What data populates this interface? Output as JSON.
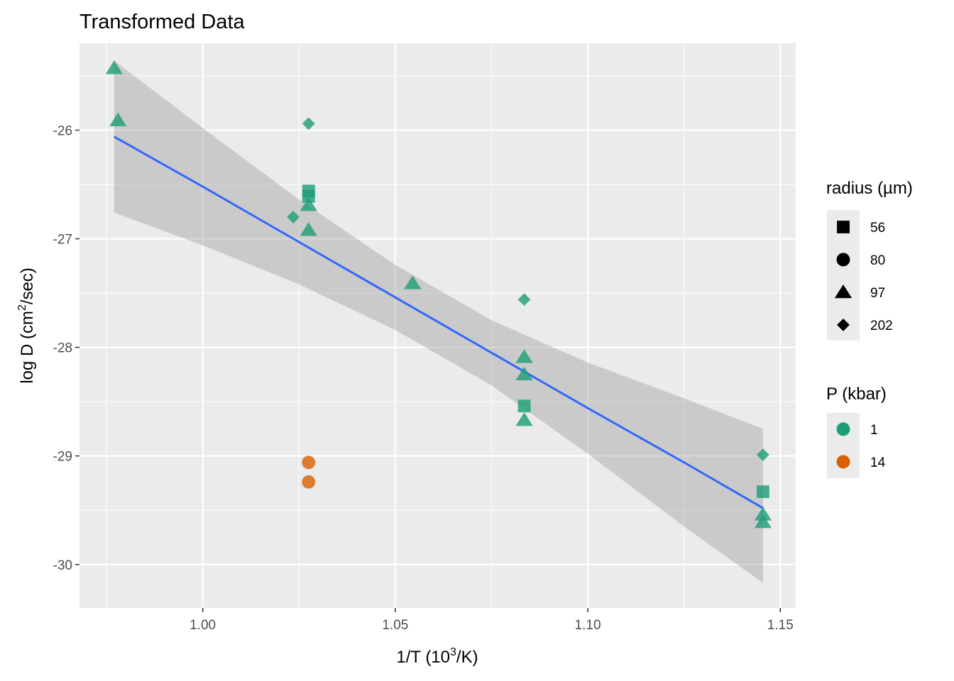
{
  "chart_data": {
    "type": "scatter",
    "title": "Transformed Data",
    "xlabel_parts": {
      "lead": "1",
      "sep1": "/",
      "mid": "T (10",
      "sup": "3",
      "sep2": "/",
      "tail": "K)"
    },
    "ylabel_parts": {
      "lead": "log D (cm",
      "sup": "2",
      "sep": "/",
      "tail": "sec)"
    },
    "xlim": [
      0.968,
      1.154
    ],
    "ylim": [
      -30.4,
      -25.2
    ],
    "x_ticks": [
      1.0,
      1.05,
      1.1,
      1.15
    ],
    "x_tick_labels": [
      "1.00",
      "1.05",
      "1.10",
      "1.15"
    ],
    "y_ticks": [
      -30,
      -29,
      -28,
      -27,
      -26
    ],
    "y_tick_labels": [
      "-30",
      "-29",
      "-28",
      "-27",
      "-26"
    ],
    "grid": true,
    "legend_position": "right",
    "legend_shape": {
      "title": "radius (µm)",
      "entries": [
        {
          "label": "56",
          "shape": "square"
        },
        {
          "label": "80",
          "shape": "circle"
        },
        {
          "label": "97",
          "shape": "triangle"
        },
        {
          "label": "202",
          "shape": "diamond"
        }
      ]
    },
    "legend_color": {
      "title": "P (kbar)",
      "entries": [
        {
          "label": "1",
          "color": "#1b9e77"
        },
        {
          "label": "14",
          "color": "#d95f02"
        }
      ]
    },
    "colors": {
      "1": "#1b9e77",
      "14": "#d95f02",
      "fit_line": "#3366ff",
      "ribbon": "#999999"
    },
    "points": [
      {
        "x": 0.977,
        "y": -25.43,
        "radius": "97",
        "P": "1"
      },
      {
        "x": 0.978,
        "y": -25.91,
        "radius": "97",
        "P": "1"
      },
      {
        "x": 1.0275,
        "y": -25.94,
        "radius": "202",
        "P": "1"
      },
      {
        "x": 1.0235,
        "y": -26.8,
        "radius": "202",
        "P": "1"
      },
      {
        "x": 1.0275,
        "y": -26.56,
        "radius": "56",
        "P": "1"
      },
      {
        "x": 1.0275,
        "y": -26.61,
        "radius": "56",
        "P": "1"
      },
      {
        "x": 1.0275,
        "y": -26.69,
        "radius": "97",
        "P": "1"
      },
      {
        "x": 1.0275,
        "y": -26.92,
        "radius": "97",
        "P": "1"
      },
      {
        "x": 1.0275,
        "y": -29.06,
        "radius": "80",
        "P": "14"
      },
      {
        "x": 1.0275,
        "y": -29.24,
        "radius": "80",
        "P": "14"
      },
      {
        "x": 1.0545,
        "y": -27.41,
        "radius": "97",
        "P": "1"
      },
      {
        "x": 1.0835,
        "y": -27.56,
        "radius": "202",
        "P": "1"
      },
      {
        "x": 1.0835,
        "y": -28.09,
        "radius": "97",
        "P": "1"
      },
      {
        "x": 1.0835,
        "y": -28.25,
        "radius": "97",
        "P": "1"
      },
      {
        "x": 1.0835,
        "y": -28.54,
        "radius": "56",
        "P": "1"
      },
      {
        "x": 1.0835,
        "y": -28.67,
        "radius": "97",
        "P": "1"
      },
      {
        "x": 1.1455,
        "y": -28.99,
        "radius": "202",
        "P": "1"
      },
      {
        "x": 1.1455,
        "y": -29.33,
        "radius": "56",
        "P": "1"
      },
      {
        "x": 1.1455,
        "y": -29.54,
        "radius": "97",
        "P": "1"
      },
      {
        "x": 1.1455,
        "y": -29.61,
        "radius": "97",
        "P": "1"
      }
    ],
    "fit": {
      "x": [
        0.977,
        1.0,
        1.025,
        1.05,
        1.075,
        1.1,
        1.125,
        1.1455
      ],
      "y": [
        -26.06,
        -26.52,
        -27.03,
        -27.54,
        -28.05,
        -28.56,
        -29.06,
        -29.48
      ],
      "lower": [
        -26.76,
        -27.06,
        -27.42,
        -27.84,
        -28.35,
        -28.98,
        -29.65,
        -30.17
      ],
      "upper": [
        -25.36,
        -25.98,
        -26.64,
        -27.24,
        -27.75,
        -28.14,
        -28.47,
        -28.75
      ]
    }
  }
}
